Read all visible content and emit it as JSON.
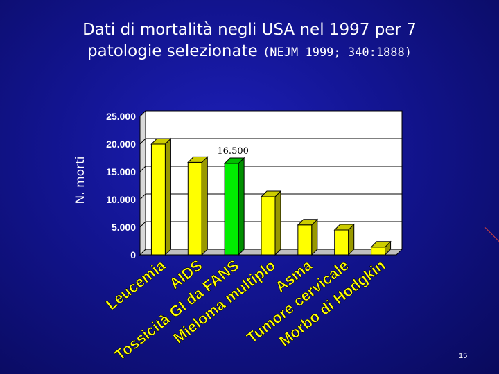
{
  "slide": {
    "title_line1": "Dati di mortalità negli USA nel 1997 per 7",
    "title_line2": "patologie selezionate",
    "title_ref": "(NEJM 1999; 340:1888)",
    "page_number": "15",
    "background_color": "#12148f"
  },
  "chart_data": {
    "type": "bar",
    "title": "Dati di mortalità negli USA nel 1997 per 7 patologie selezionate (NEJM 1999; 340:1888)",
    "ylabel": "N. morti",
    "xlabel": "",
    "categories": [
      "Leucemia",
      "AIDS",
      "Tossicità GI da FANS",
      "Mieloma multiplo",
      "Asma",
      "Tumore cervicale",
      "Morbo di Hodgkin"
    ],
    "values": [
      20000,
      16700,
      16500,
      10500,
      5400,
      4500,
      1400
    ],
    "ylim": [
      0,
      25000
    ],
    "yticks": [
      0,
      5000,
      10000,
      15000,
      20000,
      25000
    ],
    "ytick_labels": [
      "0",
      "5.000",
      "10.000",
      "15.000",
      "20.000",
      "25.000"
    ],
    "annotation": {
      "category_index": 2,
      "text": "16.500"
    },
    "bar_colors": [
      "#ffff00",
      "#ffff00",
      "#00ee00",
      "#ffff00",
      "#ffff00",
      "#ffff00",
      "#ffff00"
    ],
    "plot_background": "#ffffff",
    "grid": true,
    "legend": "none"
  }
}
